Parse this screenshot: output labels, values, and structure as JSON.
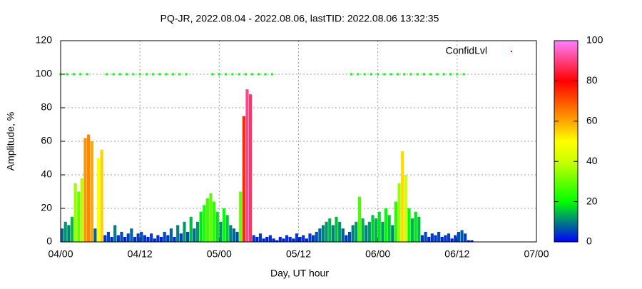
{
  "chart_data": {
    "type": "bar",
    "title": "PQ-JR, 2022.08.04 - 2022.08.06, lastTID: 2022.08.06 13:32:35",
    "xlabel": "Day, UT hour",
    "ylabel": "Amplitude, %",
    "xlim": [
      0,
      72
    ],
    "xticks": [
      {
        "value": 0,
        "label": "04/00"
      },
      {
        "value": 12,
        "label": "04/12"
      },
      {
        "value": 24,
        "label": "05/00"
      },
      {
        "value": 36,
        "label": "05/12"
      },
      {
        "value": 48,
        "label": "06/00"
      },
      {
        "value": 60,
        "label": "06/12"
      },
      {
        "value": 72,
        "label": "07/00"
      }
    ],
    "ylim": [
      0,
      120
    ],
    "yticks": [
      0,
      20,
      40,
      60,
      80,
      100,
      120
    ],
    "grid": true,
    "cblim": [
      0,
      100
    ],
    "cbticks": [
      0,
      20,
      40,
      60,
      80,
      100
    ],
    "palette": [
      {
        "value": 0,
        "color": "#0000ff"
      },
      {
        "value": 20,
        "color": "#00ff00"
      },
      {
        "value": 40,
        "color": "#ccff00"
      },
      {
        "value": 50,
        "color": "#ffff00"
      },
      {
        "value": 60,
        "color": "#ffa500"
      },
      {
        "value": 80,
        "color": "#ff0000"
      },
      {
        "value": 100,
        "color": "#ff80ff"
      }
    ],
    "legend": "upper right",
    "x": [
      0,
      0.5,
      1,
      1.5,
      2,
      2.5,
      3,
      3.5,
      4,
      4.5,
      5,
      5.5,
      6,
      6.5,
      7,
      7.5,
      8,
      8.5,
      9,
      9.5,
      10,
      10.5,
      11,
      11.5,
      12,
      12.5,
      13,
      13.5,
      14,
      14.5,
      15,
      15.5,
      16,
      16.5,
      17,
      17.5,
      18,
      18.5,
      19,
      19.5,
      20,
      20.5,
      21,
      21.5,
      22,
      22.5,
      23,
      23.5,
      24,
      24.5,
      25,
      25.5,
      26,
      26.5,
      27,
      27.5,
      28,
      28.5,
      29,
      29.5,
      30,
      30.5,
      31,
      31.5,
      32,
      32.5,
      33,
      33.5,
      34,
      34.5,
      35,
      35.5,
      36,
      36.5,
      37,
      37.5,
      38,
      38.5,
      39,
      39.5,
      40,
      40.5,
      41,
      41.5,
      42,
      42.5,
      43,
      43.5,
      44,
      44.5,
      45,
      45.5,
      46,
      46.5,
      47,
      47.5,
      48,
      48.5,
      49,
      49.5,
      50,
      50.5,
      51,
      51.5,
      52,
      52.5,
      53,
      53.5,
      54,
      54.5,
      55,
      55.5,
      56,
      56.5,
      57,
      57.5,
      58,
      58.5,
      59,
      59.5,
      60,
      60.5,
      61,
      61.5,
      62
    ],
    "values": [
      8,
      12,
      10,
      15,
      35,
      30,
      38,
      62,
      64,
      60,
      8,
      50,
      55,
      4,
      6,
      3,
      10,
      4,
      6,
      3,
      5,
      8,
      3,
      5,
      6,
      4,
      3,
      5,
      2,
      4,
      3,
      6,
      4,
      8,
      3,
      10,
      5,
      12,
      6,
      15,
      8,
      12,
      18,
      22,
      26,
      29,
      24,
      18,
      12,
      20,
      16,
      10,
      8,
      6,
      30,
      75,
      91,
      88,
      4,
      3,
      5,
      2,
      3,
      4,
      2,
      1,
      3,
      2,
      4,
      3,
      2,
      5,
      3,
      4,
      2,
      5,
      4,
      6,
      8,
      10,
      12,
      14,
      10,
      15,
      12,
      8,
      4,
      6,
      10,
      12,
      27,
      14,
      10,
      12,
      16,
      14,
      18,
      12,
      20,
      16,
      10,
      24,
      35,
      54,
      40,
      20,
      14,
      18,
      15,
      4,
      6,
      3,
      5,
      4,
      6,
      3,
      4,
      5,
      2,
      4,
      6,
      7,
      5,
      1,
      1
    ],
    "series": [
      {
        "name": "ConfidLvl",
        "color": "#00ff00",
        "legend_color": "#ff0000",
        "x": [
          0,
          1,
          2,
          3,
          4,
          7,
          8,
          9,
          10,
          11,
          12,
          13,
          14,
          15,
          16,
          17,
          18,
          19,
          23,
          24,
          25,
          26,
          27,
          28,
          29,
          30,
          31,
          32,
          44,
          45,
          46,
          47,
          48,
          49,
          50,
          51,
          52,
          53,
          54,
          55,
          56,
          57,
          58,
          59,
          60,
          61
        ],
        "values": [
          100,
          100,
          100,
          100,
          100,
          100,
          100,
          100,
          100,
          100,
          100,
          100,
          100,
          100,
          100,
          100,
          100,
          100,
          100,
          100,
          100,
          100,
          100,
          100,
          100,
          100,
          100,
          100,
          100,
          100,
          100,
          100,
          100,
          100,
          100,
          100,
          100,
          100,
          100,
          100,
          100,
          100,
          100,
          100,
          100,
          100
        ]
      }
    ]
  }
}
